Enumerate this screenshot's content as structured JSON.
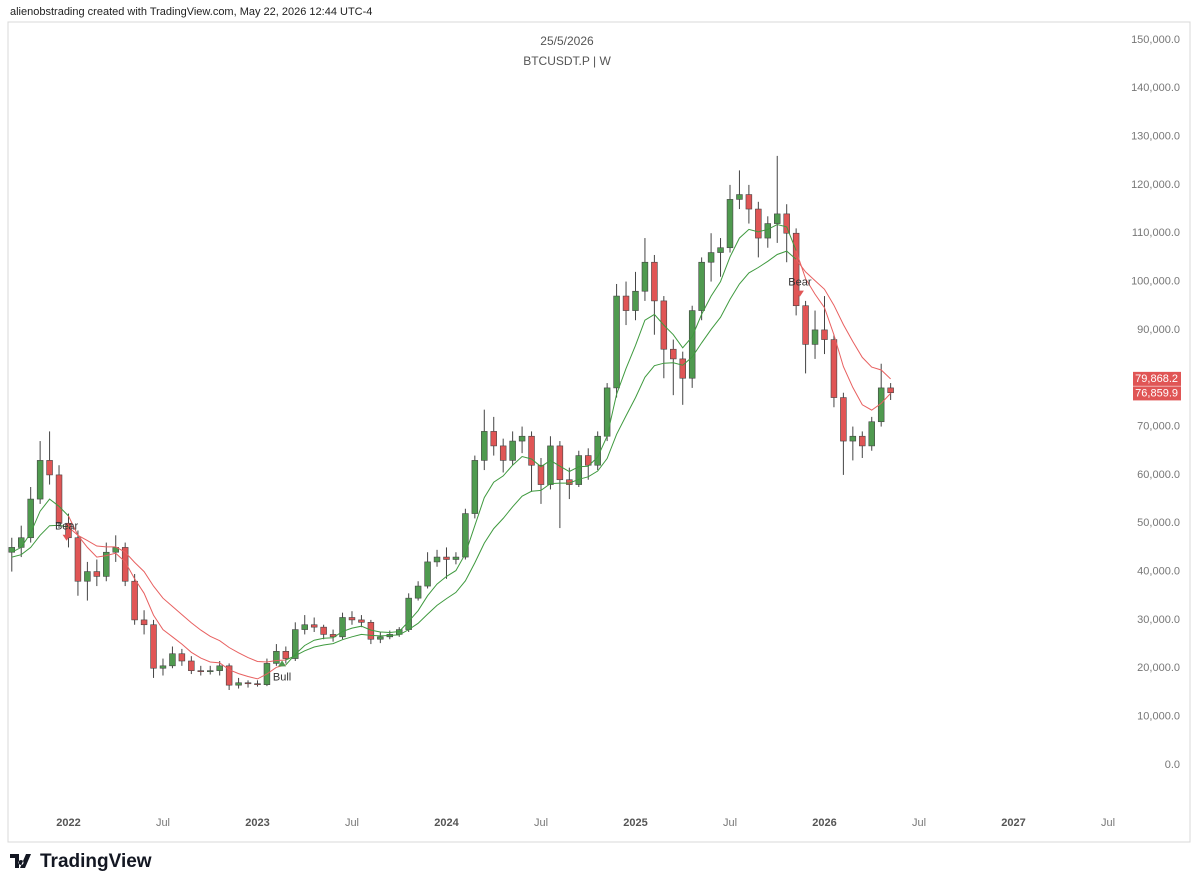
{
  "header": {
    "text": "alienobstrading created with TradingView.com, May 22, 2026 12:44 UTC-4"
  },
  "footer": {
    "brand": "TradingView"
  },
  "chart_data": {
    "type": "candlestick",
    "title": "25/5/2026",
    "subtitle": "BTCUSDT.P | W",
    "up_color": "#4f9a4f",
    "down_color": "#e05555",
    "wick_color": "#444444",
    "grid": false,
    "xlim": [
      2021.68,
      2027.59
    ],
    "xticks": [
      2022,
      {
        "value": 2022.5,
        "label": "Jul"
      },
      2023,
      {
        "value": 2023.5,
        "label": "Jul"
      },
      2024,
      {
        "value": 2024.5,
        "label": "Jul"
      },
      2025,
      {
        "value": 2025.5,
        "label": "Jul"
      },
      2026,
      {
        "value": 2026.5,
        "label": "Jul"
      },
      2027,
      {
        "value": 2027.5,
        "label": "Jul"
      }
    ],
    "ylim": [
      -14500,
      153700
    ],
    "yticks": [
      {
        "value": 0,
        "label": "0.0"
      },
      {
        "value": 10000,
        "label": "10,000.0"
      },
      {
        "value": 20000,
        "label": "20,000.0"
      },
      {
        "value": 30000,
        "label": "30,000.0"
      },
      {
        "value": 40000,
        "label": "40,000.0"
      },
      {
        "value": 50000,
        "label": "50,000.0"
      },
      {
        "value": 60000,
        "label": "60,000.0"
      },
      {
        "value": 70000,
        "label": "70,000.0"
      },
      {
        "value": 80000,
        "label": "80,000.0"
      },
      {
        "value": 90000,
        "label": "90,000.0"
      },
      {
        "value": 100000,
        "label": "100,000.0"
      },
      {
        "value": 110000,
        "label": "110,000.0"
      },
      {
        "value": 120000,
        "label": "120,000.0"
      },
      {
        "value": 130000,
        "label": "130,000.0"
      },
      {
        "value": 140000,
        "label": "140,000.0"
      },
      {
        "value": 150000,
        "label": "150,000.0"
      }
    ],
    "x": [
      2021.7,
      2021.75,
      2021.8,
      2021.85,
      2021.9,
      2021.95,
      2022,
      2022.05,
      2022.1,
      2022.15,
      2022.2,
      2022.25,
      2022.3,
      2022.35,
      2022.4,
      2022.45,
      2022.5,
      2022.55,
      2022.6,
      2022.65,
      2022.7,
      2022.75,
      2022.8,
      2022.85,
      2022.9,
      2022.95,
      2023,
      2023.05,
      2023.1,
      2023.15,
      2023.2,
      2023.25,
      2023.3,
      2023.35,
      2023.4,
      2023.45,
      2023.5,
      2023.55,
      2023.6,
      2023.65,
      2023.7,
      2023.75,
      2023.8,
      2023.85,
      2023.9,
      2023.95,
      2024,
      2024.05,
      2024.1,
      2024.15,
      2024.2,
      2024.25,
      2024.3,
      2024.35,
      2024.4,
      2024.45,
      2024.5,
      2024.55,
      2024.6,
      2024.65,
      2024.7,
      2024.75,
      2024.8,
      2024.85,
      2024.9,
      2024.95,
      2025,
      2025.05,
      2025.1,
      2025.15,
      2025.2,
      2025.25,
      2025.3,
      2025.35,
      2025.4,
      2025.45,
      2025.5,
      2025.55,
      2025.6,
      2025.65,
      2025.7,
      2025.75,
      2025.8,
      2025.85,
      2025.9,
      2025.95,
      2026,
      2026.05,
      2026.1,
      2026.15,
      2026.2,
      2026.25,
      2026.3,
      2026.35
    ],
    "open": [
      44000,
      45000,
      47000,
      55000,
      63000,
      60000,
      50000,
      47000,
      38000,
      40000,
      39000,
      44000,
      45000,
      38000,
      30000,
      29000,
      20000,
      20500,
      23000,
      21500,
      19500,
      19300,
      19500,
      20500,
      16500,
      17000,
      16800,
      16600,
      21000,
      23500,
      22000,
      28000,
      29000,
      28500,
      27000,
      26500,
      30500,
      30000,
      29500,
      26000,
      26500,
      27000,
      28000,
      34500,
      37000,
      42000,
      43000,
      42500,
      43000,
      52000,
      63000,
      69000,
      66000,
      63000,
      67000,
      68000,
      62000,
      58000,
      66000,
      59000,
      58000,
      64000,
      62000,
      68000,
      78000,
      97000,
      94000,
      98000,
      104000,
      96000,
      86000,
      84000,
      80000,
      94000,
      104000,
      106000,
      107000,
      117000,
      118000,
      115000,
      109000,
      112000,
      114000,
      110000,
      95000,
      87000,
      90000,
      88000,
      76000,
      67000,
      68000,
      66000,
      71000,
      78000
    ],
    "high": [
      47000,
      49500,
      57500,
      67000,
      69000,
      62000,
      52000,
      48500,
      42000,
      42500,
      46000,
      47500,
      46000,
      39500,
      32000,
      30000,
      22000,
      24500,
      24000,
      22500,
      20500,
      20500,
      21500,
      21000,
      18000,
      17500,
      17500,
      22000,
      25000,
      24500,
      29500,
      31000,
      30500,
      29000,
      28000,
      31500,
      31800,
      31000,
      30000,
      27500,
      27800,
      28500,
      35500,
      38000,
      44000,
      44500,
      45000,
      44000,
      53000,
      64000,
      73500,
      72000,
      67500,
      69000,
      70000,
      69000,
      63500,
      68000,
      67000,
      61500,
      65000,
      65500,
      69000,
      79000,
      99500,
      100000,
      102000,
      109000,
      105500,
      97000,
      88000,
      85500,
      95000,
      105000,
      110000,
      109000,
      120000,
      123000,
      120000,
      116500,
      113500,
      126000,
      116000,
      111000,
      96000,
      94000,
      97000,
      89000,
      77000,
      70000,
      69000,
      72000,
      83000,
      79000
    ],
    "low": [
      40000,
      43000,
      46000,
      54000,
      58000,
      49000,
      45000,
      35000,
      34000,
      37000,
      38000,
      42000,
      37000,
      29000,
      27000,
      18000,
      18500,
      20000,
      20500,
      18800,
      18500,
      18700,
      18500,
      15500,
      15800,
      16000,
      16200,
      16300,
      20500,
      21000,
      21500,
      27000,
      27500,
      26000,
      25500,
      26000,
      29000,
      28500,
      25000,
      25200,
      26000,
      26500,
      27500,
      34000,
      36500,
      41000,
      38500,
      41500,
      42500,
      51000,
      61000,
      64000,
      60500,
      62000,
      64500,
      56500,
      54000,
      57000,
      49000,
      55000,
      57500,
      59000,
      61000,
      67000,
      76000,
      91000,
      92000,
      96000,
      89000,
      80000,
      76500,
      74500,
      78000,
      92000,
      100000,
      101000,
      106000,
      115000,
      112000,
      105000,
      107000,
      108000,
      104000,
      93000,
      81000,
      84000,
      85000,
      74000,
      60000,
      63000,
      63500,
      65000,
      70000,
      75500
    ],
    "close": [
      45000,
      47000,
      55000,
      63000,
      60000,
      50000,
      47000,
      38000,
      40000,
      39000,
      44000,
      45000,
      38000,
      30000,
      29000,
      20000,
      20500,
      23000,
      21500,
      19500,
      19300,
      19500,
      20500,
      16500,
      17000,
      16800,
      16600,
      21000,
      23500,
      22000,
      28000,
      29000,
      28500,
      27000,
      26500,
      30500,
      30000,
      29500,
      26000,
      26500,
      27000,
      28000,
      34500,
      37000,
      42000,
      43000,
      42500,
      43000,
      52000,
      63000,
      69000,
      66000,
      63000,
      67000,
      68000,
      62000,
      58000,
      66000,
      59000,
      58000,
      64000,
      62000,
      68000,
      78000,
      97000,
      94000,
      98000,
      104000,
      96000,
      86000,
      84000,
      80000,
      94000,
      104000,
      106000,
      107000,
      117000,
      118000,
      115000,
      109000,
      112000,
      114000,
      110000,
      95000,
      87000,
      90000,
      88000,
      76000,
      67000,
      68000,
      66000,
      71000,
      78000,
      77000
    ],
    "series": [
      {
        "color": "#3f9a3f",
        "values": [
          44000,
          45000,
          48000,
          52500,
          55000,
          53500,
          51500,
          null,
          null,
          null,
          null,
          null,
          null,
          null,
          null,
          null,
          null,
          null,
          null,
          null,
          null,
          null,
          null,
          null,
          null,
          null,
          null,
          null,
          null,
          20700,
          22900,
          24700,
          25800,
          26200,
          26300,
          27600,
          28300,
          28700,
          27900,
          27500,
          27400,
          27600,
          29700,
          31900,
          35000,
          37400,
          39000,
          40200,
          43700,
          49500,
          55300,
          58500,
          59800,
          62000,
          63800,
          63300,
          61700,
          63000,
          61800,
          60700,
          61700,
          61800,
          63700,
          68000,
          76700,
          82000,
          86800,
          92000,
          93200,
          91000,
          89000,
          86300,
          88600,
          93200,
          97000,
          100000,
          105100,
          109000,
          110800,
          110300,
          110800,
          111800,
          111300,
          106400,
          null,
          null,
          null,
          null,
          null,
          null,
          null,
          null,
          null,
          null
        ]
      },
      {
        "color": "#3f9a3f",
        "values": [
          43000,
          43500,
          45000,
          47500,
          49500,
          49600,
          49200,
          null,
          null,
          null,
          null,
          null,
          null,
          null,
          null,
          null,
          null,
          null,
          null,
          null,
          null,
          null,
          null,
          null,
          null,
          null,
          null,
          null,
          null,
          21700,
          22600,
          23600,
          24400,
          24800,
          25100,
          25900,
          26500,
          27000,
          26800,
          26700,
          26800,
          26900,
          28000,
          29300,
          31200,
          33000,
          34400,
          35700,
          38100,
          41800,
          45900,
          48900,
          51000,
          53400,
          55600,
          56600,
          56800,
          58200,
          58300,
          58300,
          59100,
          59600,
          60800,
          63400,
          68400,
          72200,
          76000,
          80200,
          82600,
          83100,
          83200,
          82700,
          84400,
          87300,
          90100,
          92600,
          96300,
          99500,
          101800,
          102900,
          104200,
          105600,
          106300,
          104600,
          null,
          null,
          null,
          null,
          null,
          null,
          null,
          null,
          null,
          null
        ]
      },
      {
        "color": "#e86060",
        "values": [
          null,
          null,
          null,
          null,
          null,
          null,
          51500,
          47500,
          45000,
          43000,
          43300,
          43800,
          42000,
          38500,
          35500,
          31000,
          28000,
          26500,
          25000,
          23300,
          22100,
          21300,
          21100,
          19700,
          18900,
          18300,
          17800,
          18800,
          20200,
          20700,
          null,
          null,
          null,
          null,
          null,
          null,
          null,
          null,
          null,
          null,
          null,
          null,
          null,
          null,
          null,
          null,
          null,
          null,
          null,
          null,
          null,
          null,
          null,
          null,
          null,
          null,
          null,
          null,
          null,
          null,
          null,
          null,
          null,
          null,
          null,
          null,
          null,
          null,
          null,
          null,
          null,
          null,
          null,
          null,
          null,
          null,
          null,
          null,
          null,
          null,
          null,
          null,
          null,
          106400,
          100600,
          97400,
          94600,
          89000,
          82400,
          78100,
          74500,
          73400,
          74800,
          76859.9
        ]
      },
      {
        "color": "#e86060",
        "values": [
          null,
          null,
          null,
          null,
          null,
          null,
          49200,
          47500,
          46400,
          45300,
          45100,
          45100,
          44000,
          41900,
          40000,
          37000,
          34500,
          32800,
          31100,
          29400,
          27900,
          26600,
          25700,
          24300,
          23200,
          22200,
          21400,
          21300,
          21600,
          21700,
          null,
          null,
          null,
          null,
          null,
          null,
          null,
          null,
          null,
          null,
          null,
          null,
          null,
          null,
          null,
          null,
          null,
          null,
          null,
          null,
          null,
          null,
          null,
          null,
          null,
          null,
          null,
          null,
          null,
          null,
          null,
          null,
          null,
          null,
          null,
          null,
          null,
          null,
          null,
          null,
          null,
          null,
          null,
          null,
          null,
          null,
          null,
          null,
          null,
          null,
          null,
          null,
          null,
          104600,
          102000,
          100200,
          98400,
          95100,
          91100,
          87600,
          84300,
          82300,
          81700,
          79868.2
        ]
      }
    ],
    "signals": [
      {
        "label": "Bear",
        "x": 2021.99,
        "y": 47000,
        "direction": "down",
        "color": "#e05555"
      },
      {
        "label": "Bull",
        "x": 2023.13,
        "y": 21000,
        "direction": "up",
        "color": "#4f9a4f"
      },
      {
        "label": "Bear",
        "x": 2025.87,
        "y": 97500,
        "direction": "down",
        "color": "#e05555"
      }
    ],
    "last_values": [
      {
        "value": 79868.2,
        "label": "79,868.2",
        "color": "#e05555"
      },
      {
        "value": 76859.9,
        "label": "76,859.9",
        "color": "#e05555"
      }
    ]
  }
}
